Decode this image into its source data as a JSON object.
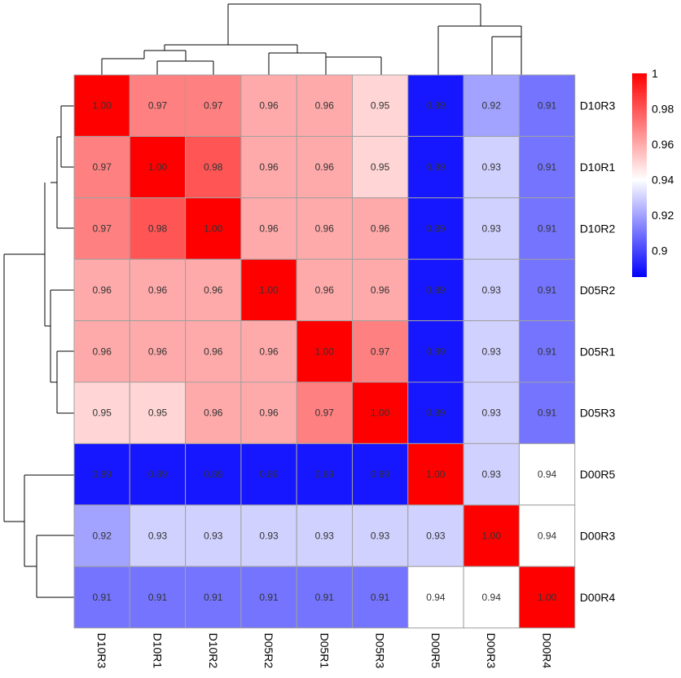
{
  "chart_data": {
    "type": "heatmap",
    "title": "",
    "columns": [
      "D10R3",
      "D10R1",
      "D10R2",
      "D05R2",
      "D05R1",
      "D05R3",
      "D00R5",
      "D00R3",
      "D00R4"
    ],
    "rows": [
      "D10R3",
      "D10R1",
      "D10R2",
      "D05R2",
      "D05R1",
      "D05R3",
      "D00R5",
      "D00R3",
      "D00R4"
    ],
    "values": [
      [
        1.0,
        0.97,
        0.97,
        0.96,
        0.96,
        0.95,
        0.89,
        0.92,
        0.91
      ],
      [
        0.97,
        1.0,
        0.98,
        0.96,
        0.96,
        0.95,
        0.89,
        0.93,
        0.91
      ],
      [
        0.97,
        0.98,
        1.0,
        0.96,
        0.96,
        0.96,
        0.89,
        0.93,
        0.91
      ],
      [
        0.96,
        0.96,
        0.96,
        1.0,
        0.96,
        0.96,
        0.89,
        0.93,
        0.91
      ],
      [
        0.96,
        0.96,
        0.96,
        0.96,
        1.0,
        0.97,
        0.89,
        0.93,
        0.91
      ],
      [
        0.95,
        0.95,
        0.96,
        0.96,
        0.97,
        1.0,
        0.89,
        0.93,
        0.91
      ],
      [
        0.89,
        0.89,
        0.89,
        0.89,
        0.89,
        0.89,
        1.0,
        0.93,
        0.94
      ],
      [
        0.92,
        0.93,
        0.93,
        0.93,
        0.93,
        0.93,
        0.93,
        1.0,
        0.94
      ],
      [
        0.91,
        0.91,
        0.91,
        0.91,
        0.91,
        0.91,
        0.94,
        0.94,
        1.0
      ]
    ],
    "color_scale": {
      "min": 0.885,
      "mid": 0.94,
      "max": 1.0,
      "low_color": "#0000ff",
      "mid_color": "#ffffff",
      "high_color": "#ff0000"
    },
    "legend": {
      "position": "top-right",
      "ticks": [
        1,
        0.98,
        0.96,
        0.94,
        0.92,
        0.9
      ],
      "tick_labels": [
        "1",
        "0.98",
        "0.96",
        "0.94",
        "0.92",
        "0.9"
      ]
    },
    "cell_border_color": "#a0a0a0",
    "dendrogram": "rows and columns clustered"
  }
}
